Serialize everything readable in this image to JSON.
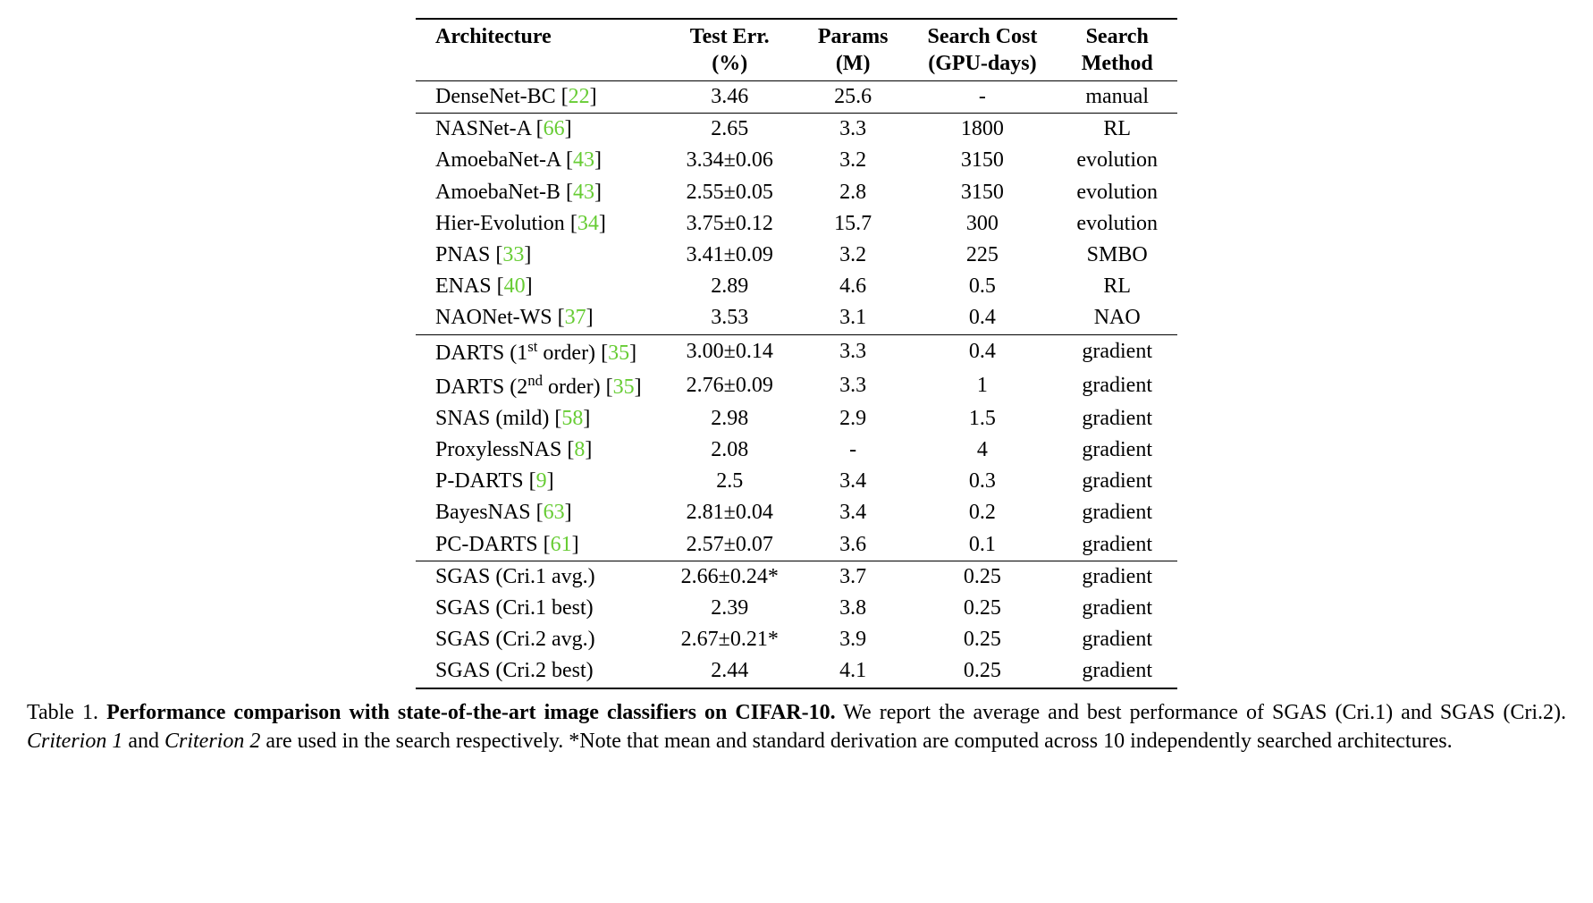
{
  "table": {
    "type": "table",
    "background_color": "#ffffff",
    "text_color": "#000000",
    "cite_color": "#66cc33",
    "font_family": "Times New Roman",
    "header_fontsize": 24,
    "cell_fontsize": 24,
    "rule_color": "#000000",
    "top_bottom_rule_width": 2,
    "mid_rule_width": 1,
    "headers": {
      "architecture": {
        "line1": "Architecture",
        "line2": ""
      },
      "test_err": {
        "line1": "Test Err.",
        "line2": "(%)"
      },
      "params": {
        "line1": "Params",
        "line2": "(M)"
      },
      "search_cost": {
        "line1": "Search Cost",
        "line2": "(GPU-days)"
      },
      "search_method": {
        "line1": "Search",
        "line2": "Method"
      }
    },
    "groups": [
      {
        "rows": [
          {
            "arch": "DenseNet-BC",
            "cite": "22",
            "test_err": "3.46",
            "params": "25.6",
            "search_cost": "-",
            "method": "manual"
          }
        ]
      },
      {
        "rows": [
          {
            "arch": "NASNet-A",
            "cite": "66",
            "test_err": "2.65",
            "params": "3.3",
            "search_cost": "1800",
            "method": "RL"
          },
          {
            "arch": "AmoebaNet-A",
            "cite": "43",
            "test_err": "3.34±0.06",
            "params": "3.2",
            "search_cost": "3150",
            "method": "evolution"
          },
          {
            "arch": "AmoebaNet-B",
            "cite": "43",
            "test_err": "2.55±0.05",
            "params": "2.8",
            "search_cost": "3150",
            "method": "evolution"
          },
          {
            "arch": "Hier-Evolution",
            "cite": "34",
            "test_err": "3.75±0.12",
            "params": "15.7",
            "search_cost": "300",
            "method": "evolution"
          },
          {
            "arch": "PNAS",
            "cite": "33",
            "test_err": "3.41±0.09",
            "params": "3.2",
            "search_cost": "225",
            "method": "SMBO"
          },
          {
            "arch": "ENAS",
            "cite": "40",
            "test_err": "2.89",
            "params": "4.6",
            "search_cost": "0.5",
            "method": "RL"
          },
          {
            "arch": "NAONet-WS",
            "cite": "37",
            "test_err": "3.53",
            "params": "3.1",
            "search_cost": "0.4",
            "method": "NAO"
          }
        ]
      },
      {
        "rows": [
          {
            "arch_html": "DARTS (1<span class=\"sup\">st</span> order)",
            "cite": "35",
            "test_err": "3.00±0.14",
            "params": "3.3",
            "search_cost": "0.4",
            "method": "gradient"
          },
          {
            "arch_html": "DARTS (2<span class=\"sup\">nd</span> order)",
            "cite": "35",
            "test_err": "2.76±0.09",
            "params": "3.3",
            "search_cost": "1",
            "method": "gradient"
          },
          {
            "arch": "SNAS (mild)",
            "cite": "58",
            "test_err": "2.98",
            "params": "2.9",
            "search_cost": "1.5",
            "method": "gradient"
          },
          {
            "arch": "ProxylessNAS",
            "cite": "8",
            "test_err": "2.08",
            "params": "-",
            "search_cost": "4",
            "method": "gradient"
          },
          {
            "arch": "P-DARTS",
            "cite": "9",
            "test_err": "2.5",
            "params": "3.4",
            "search_cost": "0.3",
            "method": "gradient"
          },
          {
            "arch": "BayesNAS",
            "cite": "63",
            "test_err": "2.81±0.04",
            "params": "3.4",
            "search_cost": "0.2",
            "method": "gradient"
          },
          {
            "arch": "PC-DARTS",
            "cite": "61",
            "test_err": "2.57±0.07",
            "params": "3.6",
            "search_cost": "0.1",
            "method": "gradient"
          }
        ]
      },
      {
        "rows": [
          {
            "arch": "SGAS (Cri.1 avg.)",
            "cite": "",
            "test_err": "2.66±0.24*",
            "params": "3.7",
            "search_cost": "0.25",
            "method": "gradient"
          },
          {
            "arch": "SGAS (Cri.1 best)",
            "cite": "",
            "test_err": "2.39",
            "params": "3.8",
            "search_cost": "0.25",
            "method": "gradient"
          },
          {
            "arch": "SGAS (Cri.2 avg.)",
            "cite": "",
            "test_err": "2.67±0.21*",
            "params": "3.9",
            "search_cost": "0.25",
            "method": "gradient"
          },
          {
            "arch": "SGAS (Cri.2 best)",
            "cite": "",
            "test_err": "2.44",
            "params": "4.1",
            "search_cost": "0.25",
            "method": "gradient"
          }
        ]
      }
    ]
  },
  "caption": {
    "label": "Table 1.",
    "title": "Performance comparison with state-of-the-art image classifiers on CIFAR-10.",
    "body_pre": " We report the average and best performance of SGAS (Cri.1) and SGAS (Cri.2). ",
    "italic1": "Criterion 1",
    "mid": " and ",
    "italic2": "Criterion 2",
    "body_post": " are used in the search respectively. *Note that mean and standard derivation are computed across 10 independently searched architectures.",
    "fontsize": 24
  }
}
